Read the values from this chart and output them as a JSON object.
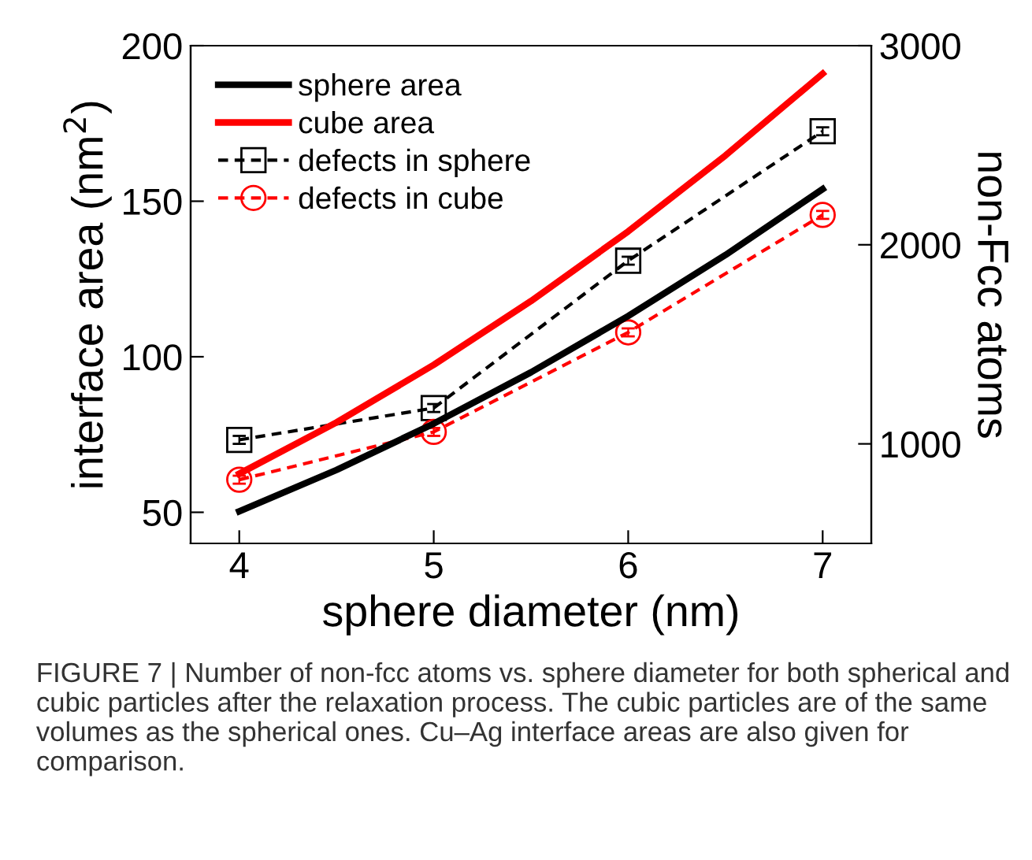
{
  "chart_data": {
    "type": "line",
    "xlabel": "sphere diameter (nm)",
    "ylabel": "interface area (nm$^{2}$)",
    "y2label": "non-Fcc atoms",
    "xlim": [
      3.75,
      7.25
    ],
    "xticks": [
      4,
      5,
      6,
      7
    ],
    "ylim": [
      40,
      200
    ],
    "yticks": [
      50,
      100,
      150,
      200
    ],
    "y2lim": [
      500,
      3000
    ],
    "y2ticks": [
      1000,
      2000,
      3000
    ],
    "legend": "top left",
    "grid": false,
    "series": [
      {
        "name": "sphere area",
        "color": "#000000",
        "x": [
          4,
          4.5,
          5,
          5.5,
          6,
          6.5,
          7
        ],
        "values": [
          50.3,
          63.6,
          78.5,
          95.0,
          113.1,
          132.7,
          153.9
        ],
        "marker": "none",
        "line_style": "solid"
      },
      {
        "name": "cube area",
        "color": "#ff0000",
        "x": [
          4,
          4.5,
          5,
          5.5,
          6,
          6.5,
          7
        ],
        "values": [
          62.4,
          78.9,
          97.4,
          117.9,
          140.3,
          164.7,
          191.0
        ],
        "marker": "none",
        "line_style": "solid"
      },
      {
        "name": "defects in sphere",
        "color": "#000000",
        "axis": "y2",
        "x": [
          4,
          5,
          6,
          7
        ],
        "values": [
          1020,
          1180,
          1920,
          2570
        ],
        "errors": [
          20,
          20,
          20,
          20
        ],
        "marker": "square",
        "line_style": "dashed"
      },
      {
        "name": "defects in cube",
        "color": "#ff0000",
        "axis": "y2",
        "x": [
          4,
          5,
          6,
          7
        ],
        "values": [
          820,
          1060,
          1560,
          2150
        ],
        "errors": [
          20,
          20,
          20,
          20
        ],
        "marker": "circle",
        "line_style": "dashed"
      }
    ],
    "annotations": [
      "FIGURE 7 | Number of non-fcc atoms vs. sphere diameter for both spherical and cubic particles after the relaxation process. The cubic particles are of the same volumes as the spherical ones. Cu–Ag interface areas are also given for comparison."
    ]
  }
}
